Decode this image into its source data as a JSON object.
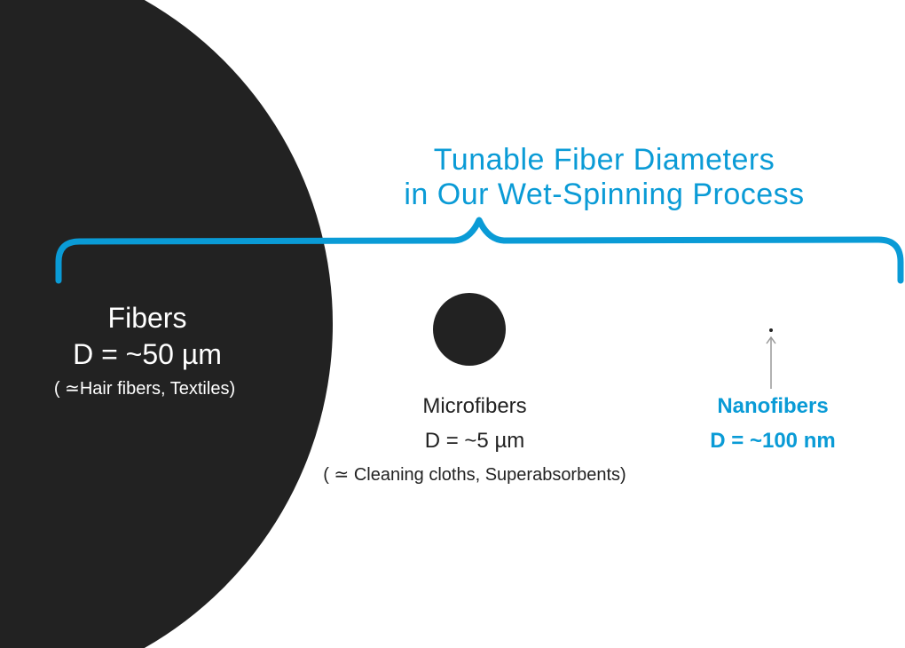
{
  "title": {
    "line1": "Tunable Fiber Diameters",
    "line2": "in Our Wet-Spinning Process"
  },
  "fibers": {
    "label": "Fibers",
    "diameter": "D = ~50 µm",
    "examples": "( ≃Hair fibers, Textiles)"
  },
  "microfibers": {
    "label": "Microfibers",
    "diameter": "D = ~5 µm",
    "examples": "( ≃ Cleaning cloths, Superabsorbents)"
  },
  "nanofibers": {
    "label": "Nanofibers",
    "diameter": "D = ~100 nm"
  },
  "colors": {
    "accent": "#0a9bd6",
    "fiber": "#222222",
    "arrow": "#999999"
  }
}
